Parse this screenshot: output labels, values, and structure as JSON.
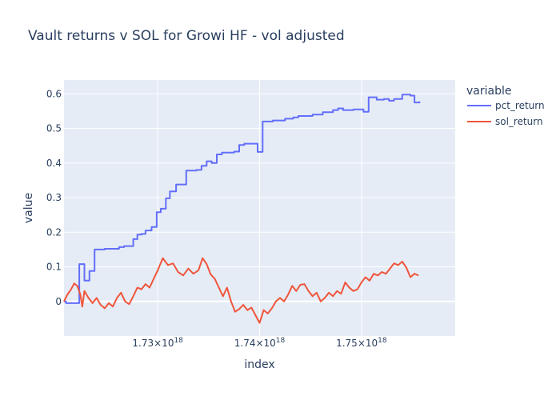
{
  "chart_data": {
    "type": "line",
    "title": "Vault returns v SOL for Growi HF - vol adjusted",
    "xlabel": "index",
    "ylabel": "value",
    "x_ticks": [
      {
        "value": 1.73e+18,
        "label": "1.73×10",
        "exp": "18"
      },
      {
        "value": 1.74e+18,
        "label": "1.74×10",
        "exp": "18"
      },
      {
        "value": 1.75e+18,
        "label": "1.75×10",
        "exp": "18"
      }
    ],
    "y_ticks": [
      0,
      0.1,
      0.2,
      0.3,
      0.4,
      0.5,
      0.6
    ],
    "xlim": [
      1.7208e+18,
      1.7592e+18
    ],
    "ylim": [
      -0.1,
      0.64
    ],
    "grid": true,
    "legend_title": "variable",
    "legend_position": "right",
    "colors": {
      "background": "#e5ecf6",
      "grid": "#ffffff",
      "text": "#2a3f5f"
    },
    "series": [
      {
        "name": "pct_return",
        "color": "#636efa",
        "step": true,
        "points": [
          [
            1.7208e+18,
            0.0
          ],
          [
            1.721e+18,
            -0.005
          ],
          [
            1.7221e+18,
            -0.005
          ],
          [
            1.7223e+18,
            0.108
          ],
          [
            1.7228e+18,
            0.06
          ],
          [
            1.7233e+18,
            0.088
          ],
          [
            1.7238e+18,
            0.15
          ],
          [
            1.7243e+18,
            0.15
          ],
          [
            1.7248e+18,
            0.152
          ],
          [
            1.7262e+18,
            0.157
          ],
          [
            1.7267e+18,
            0.16
          ],
          [
            1.7276e+18,
            0.18
          ],
          [
            1.728e+18,
            0.193
          ],
          [
            1.7284e+18,
            0.195
          ],
          [
            1.7288e+18,
            0.205
          ],
          [
            1.7294e+18,
            0.215
          ],
          [
            1.7299e+18,
            0.258
          ],
          [
            1.7303e+18,
            0.268
          ],
          [
            1.7308e+18,
            0.298
          ],
          [
            1.7312e+18,
            0.318
          ],
          [
            1.7318e+18,
            0.338
          ],
          [
            1.7328e+18,
            0.378
          ],
          [
            1.7338e+18,
            0.38
          ],
          [
            1.7343e+18,
            0.392
          ],
          [
            1.7348e+18,
            0.405
          ],
          [
            1.7353e+18,
            0.4
          ],
          [
            1.7358e+18,
            0.425
          ],
          [
            1.7363e+18,
            0.43
          ],
          [
            1.7375e+18,
            0.433
          ],
          [
            1.738e+18,
            0.452
          ],
          [
            1.7385e+18,
            0.456
          ],
          [
            1.7398e+18,
            0.432
          ],
          [
            1.7403e+18,
            0.52
          ],
          [
            1.7413e+18,
            0.523
          ],
          [
            1.7425e+18,
            0.528
          ],
          [
            1.7433e+18,
            0.532
          ],
          [
            1.7438e+18,
            0.536
          ],
          [
            1.7452e+18,
            0.54
          ],
          [
            1.7462e+18,
            0.547
          ],
          [
            1.7472e+18,
            0.553
          ],
          [
            1.7477e+18,
            0.558
          ],
          [
            1.7482e+18,
            0.553
          ],
          [
            1.7492e+18,
            0.555
          ],
          [
            1.7502e+18,
            0.548
          ],
          [
            1.7507e+18,
            0.59
          ],
          [
            1.7515e+18,
            0.583
          ],
          [
            1.7522e+18,
            0.585
          ],
          [
            1.7527e+18,
            0.58
          ],
          [
            1.7532e+18,
            0.585
          ],
          [
            1.754e+18,
            0.598
          ],
          [
            1.7548e+18,
            0.595
          ],
          [
            1.7552e+18,
            0.575
          ],
          [
            1.7557e+18,
            0.578
          ]
        ]
      },
      {
        "name": "sol_return",
        "color": "#ef553b",
        "step": false,
        "points": [
          [
            1.7208e+18,
            0.0
          ],
          [
            1.7211e+18,
            0.018
          ],
          [
            1.7215e+18,
            0.035
          ],
          [
            1.7218e+18,
            0.052
          ],
          [
            1.7221e+18,
            0.045
          ],
          [
            1.7224e+18,
            0.02
          ],
          [
            1.7226e+18,
            -0.015
          ],
          [
            1.7228e+18,
            0.03
          ],
          [
            1.7232e+18,
            0.01
          ],
          [
            1.7236e+18,
            -0.005
          ],
          [
            1.724e+18,
            0.01
          ],
          [
            1.7244e+18,
            -0.01
          ],
          [
            1.7248e+18,
            -0.02
          ],
          [
            1.7252e+18,
            -0.005
          ],
          [
            1.7256e+18,
            -0.015
          ],
          [
            1.726e+18,
            0.01
          ],
          [
            1.7264e+18,
            0.025
          ],
          [
            1.7268e+18,
            0.0
          ],
          [
            1.7272e+18,
            -0.008
          ],
          [
            1.7276e+18,
            0.015
          ],
          [
            1.728e+18,
            0.04
          ],
          [
            1.7284e+18,
            0.035
          ],
          [
            1.7288e+18,
            0.05
          ],
          [
            1.7292e+18,
            0.04
          ],
          [
            1.7296e+18,
            0.065
          ],
          [
            1.73e+18,
            0.09
          ],
          [
            1.7305e+18,
            0.125
          ],
          [
            1.731e+18,
            0.105
          ],
          [
            1.7315e+18,
            0.11
          ],
          [
            1.732e+18,
            0.085
          ],
          [
            1.7325e+18,
            0.075
          ],
          [
            1.733e+18,
            0.095
          ],
          [
            1.7335e+18,
            0.08
          ],
          [
            1.734e+18,
            0.09
          ],
          [
            1.7344e+18,
            0.125
          ],
          [
            1.7348e+18,
            0.108
          ],
          [
            1.7352e+18,
            0.078
          ],
          [
            1.7356e+18,
            0.065
          ],
          [
            1.736e+18,
            0.04
          ],
          [
            1.7364e+18,
            0.015
          ],
          [
            1.7368e+18,
            0.04
          ],
          [
            1.7372e+18,
            0.0
          ],
          [
            1.7376e+18,
            -0.03
          ],
          [
            1.738e+18,
            -0.022
          ],
          [
            1.7384e+18,
            -0.01
          ],
          [
            1.7388e+18,
            -0.025
          ],
          [
            1.7392e+18,
            -0.018
          ],
          [
            1.7396e+18,
            -0.04
          ],
          [
            1.74e+18,
            -0.062
          ],
          [
            1.7404e+18,
            -0.025
          ],
          [
            1.7408e+18,
            -0.035
          ],
          [
            1.7412e+18,
            -0.02
          ],
          [
            1.7416e+18,
            0.0
          ],
          [
            1.742e+18,
            0.01
          ],
          [
            1.7424e+18,
            0.0
          ],
          [
            1.7428e+18,
            0.02
          ],
          [
            1.7432e+18,
            0.045
          ],
          [
            1.7436e+18,
            0.03
          ],
          [
            1.744e+18,
            0.048
          ],
          [
            1.7444e+18,
            0.05
          ],
          [
            1.7448e+18,
            0.03
          ],
          [
            1.7452e+18,
            0.015
          ],
          [
            1.7456e+18,
            0.025
          ],
          [
            1.746e+18,
            0.0
          ],
          [
            1.7464e+18,
            0.01
          ],
          [
            1.7468e+18,
            0.025
          ],
          [
            1.7472e+18,
            0.015
          ],
          [
            1.7476e+18,
            0.03
          ],
          [
            1.748e+18,
            0.022
          ],
          [
            1.7484e+18,
            0.055
          ],
          [
            1.7488e+18,
            0.04
          ],
          [
            1.7492e+18,
            0.03
          ],
          [
            1.7496e+18,
            0.035
          ],
          [
            1.75e+18,
            0.055
          ],
          [
            1.7504e+18,
            0.07
          ],
          [
            1.7508e+18,
            0.06
          ],
          [
            1.7512e+18,
            0.08
          ],
          [
            1.7516e+18,
            0.075
          ],
          [
            1.752e+18,
            0.085
          ],
          [
            1.7524e+18,
            0.08
          ],
          [
            1.7528e+18,
            0.095
          ],
          [
            1.7532e+18,
            0.11
          ],
          [
            1.7536e+18,
            0.105
          ],
          [
            1.754e+18,
            0.115
          ],
          [
            1.7544e+18,
            0.098
          ],
          [
            1.7548e+18,
            0.07
          ],
          [
            1.7552e+18,
            0.08
          ],
          [
            1.7556e+18,
            0.075
          ]
        ]
      }
    ]
  }
}
